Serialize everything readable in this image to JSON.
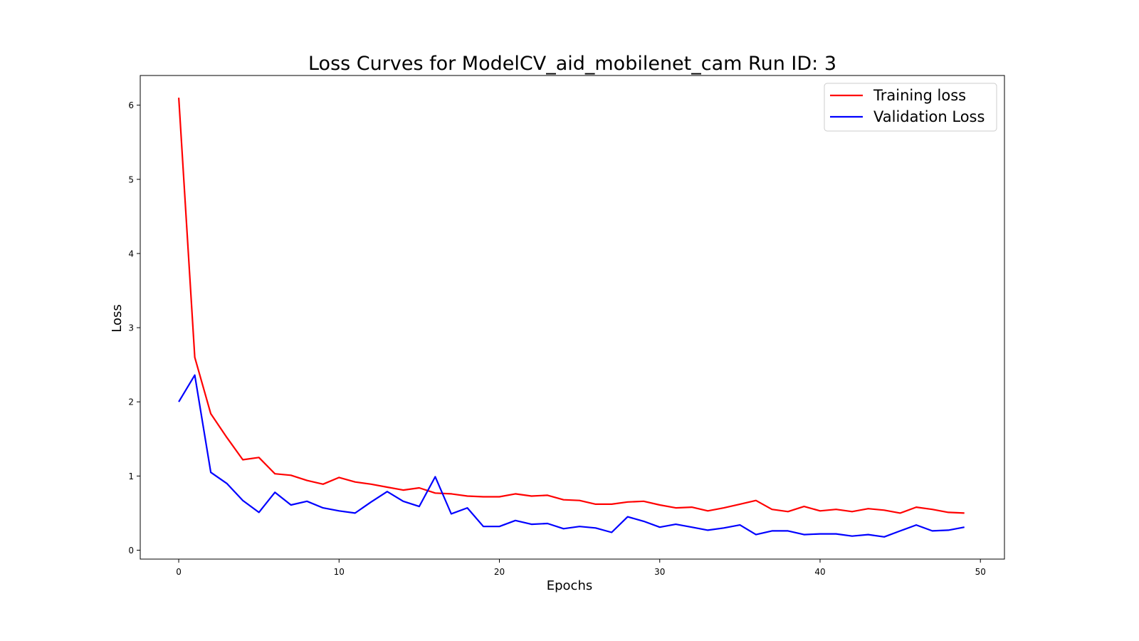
{
  "chart_data": {
    "type": "line",
    "title": "Loss Curves for ModelCV_aid_mobilenet_cam Run ID: 3",
    "xlabel": "Epochs",
    "ylabel": "Loss",
    "xlim": [
      -2.4,
      51.5
    ],
    "ylim": [
      -0.12,
      6.4
    ],
    "xticks": [
      0,
      10,
      20,
      30,
      40,
      50
    ],
    "yticks": [
      0,
      1,
      2,
      3,
      4,
      5,
      6
    ],
    "grid": false,
    "legend_position": "top-right",
    "x": [
      0,
      1,
      2,
      3,
      4,
      5,
      6,
      7,
      8,
      9,
      10,
      11,
      12,
      13,
      14,
      15,
      16,
      17,
      18,
      19,
      20,
      21,
      22,
      23,
      24,
      25,
      26,
      27,
      28,
      29,
      30,
      31,
      32,
      33,
      34,
      35,
      36,
      37,
      38,
      39,
      40,
      41,
      42,
      43,
      44,
      45,
      46,
      47,
      48,
      49
    ],
    "series": [
      {
        "name": "Training loss",
        "color": "#ff0000",
        "values": [
          6.1,
          2.6,
          1.84,
          1.52,
          1.22,
          1.25,
          1.03,
          1.01,
          0.94,
          0.89,
          0.98,
          0.92,
          0.89,
          0.85,
          0.81,
          0.84,
          0.77,
          0.76,
          0.73,
          0.72,
          0.72,
          0.76,
          0.73,
          0.74,
          0.68,
          0.67,
          0.62,
          0.62,
          0.65,
          0.66,
          0.61,
          0.57,
          0.58,
          0.53,
          0.57,
          0.62,
          0.67,
          0.55,
          0.52,
          0.59,
          0.53,
          0.55,
          0.52,
          0.56,
          0.54,
          0.5,
          0.58,
          0.55,
          0.51,
          0.5
        ]
      },
      {
        "name": "Validation Loss",
        "color": "#0000ff",
        "values": [
          2.0,
          2.36,
          1.05,
          0.9,
          0.67,
          0.51,
          0.78,
          0.61,
          0.66,
          0.57,
          0.53,
          0.5,
          0.65,
          0.79,
          0.66,
          0.59,
          0.99,
          0.49,
          0.57,
          0.32,
          0.32,
          0.4,
          0.35,
          0.36,
          0.29,
          0.32,
          0.3,
          0.24,
          0.45,
          0.39,
          0.31,
          0.35,
          0.31,
          0.27,
          0.3,
          0.34,
          0.21,
          0.26,
          0.26,
          0.21,
          0.22,
          0.22,
          0.19,
          0.21,
          0.18,
          0.26,
          0.34,
          0.26,
          0.27,
          0.31
        ]
      }
    ]
  }
}
